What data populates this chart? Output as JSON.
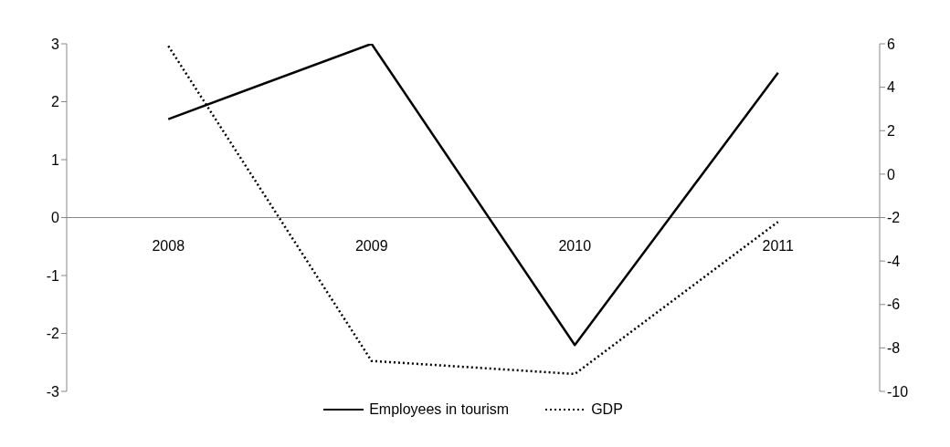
{
  "chart_data": {
    "type": "line",
    "categories": [
      "2008",
      "2009",
      "2010",
      "2011"
    ],
    "series": [
      {
        "name": "Employees in tourism",
        "color": "#000000",
        "values": [
          1.7,
          3.0,
          -2.2,
          2.5
        ],
        "line_style": "solid"
      },
      {
        "name": "GDP",
        "color": "#000000",
        "values": [
          5.9,
          -8.6,
          -9.2,
          -2.2
        ],
        "axis": "y2",
        "line_style": "dotted"
      }
    ],
    "ylim": [
      -3,
      3
    ],
    "yticks": [
      -3,
      -2,
      -1,
      0,
      1,
      2,
      3
    ],
    "y2lim": [
      -10,
      6
    ],
    "y2ticks": [
      -10,
      -8,
      -6,
      -4,
      -2,
      0,
      2,
      4,
      6
    ],
    "grid": false,
    "legend": "bottom",
    "marker": "none"
  }
}
